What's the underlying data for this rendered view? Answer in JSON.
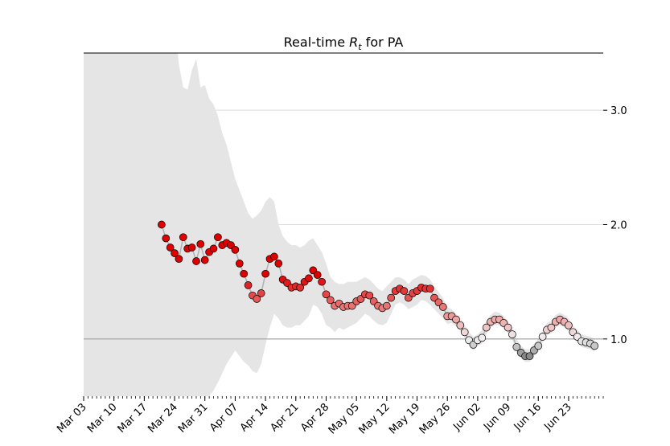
{
  "chart_data": {
    "type": "scatter",
    "title_main": "Real-time ",
    "title_symbol": "R",
    "title_subscript": "t",
    "title_suffix": " for PA",
    "ylim": [
      0.5,
      3.5
    ],
    "yticks": [
      "1.0",
      "2.0",
      "3.0"
    ],
    "ytick_values": [
      1.0,
      2.0,
      3.0
    ],
    "xlim_days": [
      0,
      120
    ],
    "xticks": [
      {
        "label": "Mar 03",
        "day": 0
      },
      {
        "label": "Mar 10",
        "day": 7
      },
      {
        "label": "Mar 17",
        "day": 14
      },
      {
        "label": "Mar 24",
        "day": 21
      },
      {
        "label": "Mar 31",
        "day": 28
      },
      {
        "label": "Apr 07",
        "day": 35
      },
      {
        "label": "Apr 14",
        "day": 42
      },
      {
        "label": "Apr 21",
        "day": 49
      },
      {
        "label": "Apr 28",
        "day": 56
      },
      {
        "label": "May 05",
        "day": 63
      },
      {
        "label": "May 12",
        "day": 70
      },
      {
        "label": "May 19",
        "day": 77
      },
      {
        "label": "May 26",
        "day": 84
      },
      {
        "label": "Jun 02",
        "day": 91
      },
      {
        "label": "Jun 09",
        "day": 98
      },
      {
        "label": "Jun 16",
        "day": 105
      },
      {
        "label": "Jun 23",
        "day": 112
      }
    ],
    "reference_line": 1.0,
    "grid": "horizontal",
    "series": [
      {
        "start_day": 18,
        "rt": [
          2.0,
          1.88,
          1.8,
          1.75,
          1.7,
          1.89,
          1.79,
          1.8,
          1.68,
          1.83,
          1.69,
          1.76,
          1.79,
          1.89,
          1.82,
          1.84,
          1.82,
          1.78,
          1.66,
          1.57,
          1.47,
          1.38,
          1.35,
          1.4,
          1.57,
          1.7,
          1.72,
          1.66,
          1.52,
          1.49,
          1.45,
          1.46,
          1.45,
          1.5,
          1.53,
          1.6,
          1.56,
          1.5,
          1.39,
          1.34,
          1.29,
          1.31,
          1.28,
          1.29,
          1.29,
          1.33,
          1.35,
          1.39,
          1.38,
          1.33,
          1.29,
          1.27,
          1.29,
          1.36,
          1.42,
          1.44,
          1.42,
          1.36,
          1.4,
          1.42,
          1.45,
          1.44,
          1.44,
          1.36,
          1.32,
          1.28,
          1.2,
          1.2,
          1.17,
          1.12,
          1.06,
          0.99,
          0.95,
          0.99,
          1.01,
          1.1,
          1.15,
          1.17,
          1.17,
          1.14,
          1.1,
          1.04,
          0.93,
          0.88,
          0.85,
          0.85,
          0.9,
          0.94,
          1.02,
          1.08,
          1.1,
          1.15,
          1.17,
          1.15,
          1.12,
          1.06,
          1.02,
          0.98,
          0.97,
          0.96,
          0.94
        ]
      }
    ],
    "band_high": {
      "start_day": 18,
      "values": [
        3.8,
        3.7,
        3.8,
        3.8,
        3.4,
        3.2,
        3.18,
        3.35,
        3.45,
        3.2,
        3.22,
        3.1,
        3.05,
        2.95,
        2.8,
        2.7,
        2.55,
        2.4,
        2.3,
        2.2,
        2.1,
        2.05,
        2.08,
        2.12,
        2.2,
        2.24,
        2.2,
        2.0,
        1.9,
        1.85,
        1.82,
        1.82,
        1.8,
        1.82,
        1.86,
        1.88,
        1.82,
        1.76,
        1.66,
        1.54,
        1.5,
        1.48,
        1.48,
        1.5,
        1.5,
        1.5,
        1.52,
        1.54,
        1.52,
        1.48,
        1.44,
        1.42,
        1.46,
        1.5,
        1.54,
        1.54,
        1.52,
        1.48,
        1.52,
        1.54,
        1.56,
        1.55,
        1.52,
        1.46,
        1.41,
        1.36,
        1.28,
        1.26,
        1.22,
        1.18,
        1.12,
        1.06,
        1.02,
        1.04,
        1.08,
        1.16,
        1.21,
        1.24,
        1.23,
        1.2,
        1.16,
        1.1,
        1.0,
        0.94,
        0.91,
        0.91,
        0.96,
        1.0,
        1.08,
        1.14,
        1.16,
        1.21,
        1.23,
        1.21,
        1.18,
        1.12,
        1.08,
        1.04,
        1.03,
        1.02,
        1.0
      ]
    },
    "band_low": {
      "start_day": 18,
      "values": [
        0.3,
        0.3,
        0.3,
        0.3,
        0.3,
        0.3,
        0.3,
        0.3,
        0.3,
        0.4,
        0.45,
        0.5,
        0.55,
        0.62,
        0.7,
        0.78,
        0.84,
        0.9,
        0.85,
        0.8,
        0.77,
        0.72,
        0.7,
        0.78,
        0.95,
        1.1,
        1.22,
        1.18,
        1.12,
        1.1,
        1.1,
        1.12,
        1.12,
        1.16,
        1.2,
        1.3,
        1.28,
        1.22,
        1.12,
        1.1,
        1.06,
        1.1,
        1.08,
        1.1,
        1.12,
        1.14,
        1.18,
        1.22,
        1.2,
        1.16,
        1.13,
        1.12,
        1.14,
        1.22,
        1.3,
        1.32,
        1.3,
        1.26,
        1.28,
        1.3,
        1.34,
        1.33,
        1.3,
        1.26,
        1.22,
        1.18,
        1.13,
        1.14,
        1.11,
        1.07,
        1.01,
        0.94,
        0.9,
        0.94,
        0.96,
        1.04,
        1.1,
        1.12,
        1.12,
        1.09,
        1.05,
        0.99,
        0.88,
        0.83,
        0.8,
        0.8,
        0.85,
        0.89,
        0.97,
        1.03,
        1.05,
        1.1,
        1.12,
        1.1,
        1.07,
        1.01,
        0.97,
        0.93,
        0.92,
        0.91,
        0.89
      ]
    },
    "colors": {
      "band": "#e5e5e5",
      "line": "#b0b0b0",
      "reference": "#a0a0a0",
      "grid": "#dddddd",
      "high": "#e00000",
      "mid": "#f2f2f2",
      "low": "#666666",
      "marker_edge": "#000000"
    }
  }
}
